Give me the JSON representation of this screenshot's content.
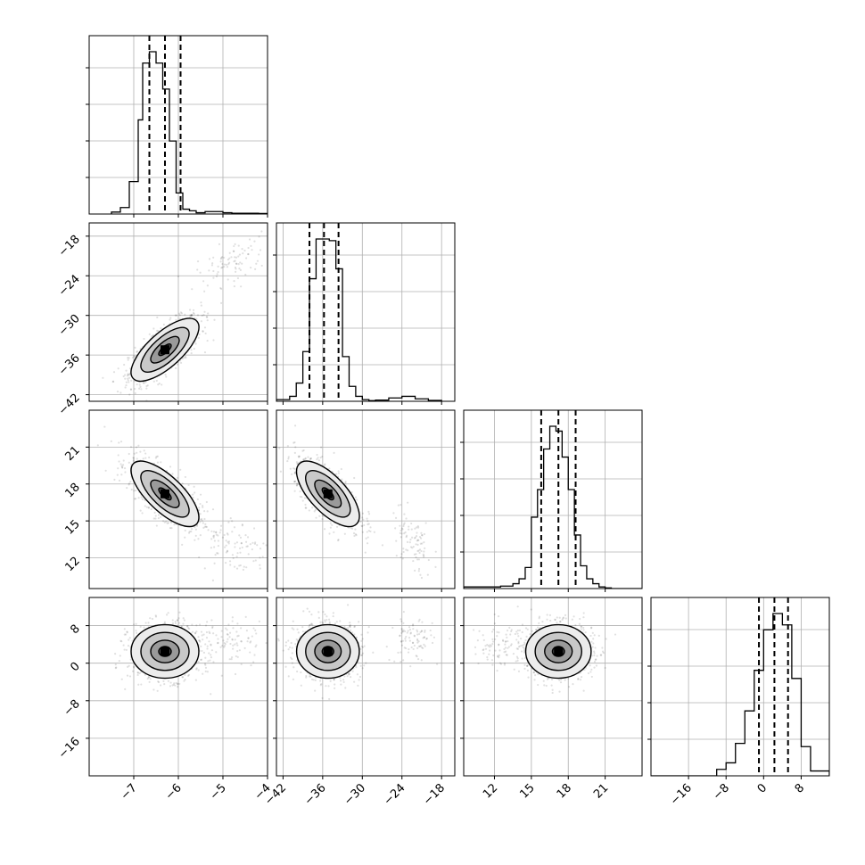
{
  "chart_data": {
    "type": "corner",
    "grid": true,
    "parameters": [
      {
        "ticks": [
          -7,
          -6,
          -5,
          -4
        ],
        "tick_labels": [
          "−7",
          "−6",
          "−5",
          "−4"
        ],
        "range": [
          -8.0,
          -4.0
        ],
        "hist": {
          "bins": [
            -7.5,
            -7.3,
            -7.1,
            -6.9,
            -6.8,
            -6.65,
            -6.5,
            -6.35,
            -6.2,
            -6.05,
            -5.9,
            -5.75,
            -5.6,
            -5.4,
            -5.2,
            -5.0,
            -4.8,
            -4.6,
            -4.4,
            -4.2,
            -4.0
          ],
          "counts": [
            0.012,
            0.04,
            0.2,
            0.58,
            0.93,
            1.0,
            0.93,
            0.77,
            0.45,
            0.13,
            0.03,
            0.02,
            0.008,
            0.015,
            0.015,
            0.008,
            0.005,
            0.005,
            0.005,
            0.003
          ]
        },
        "quantiles": [
          -6.65,
          -6.3,
          -5.95
        ]
      },
      {
        "ticks": [
          -42,
          -36,
          -30,
          -24,
          -18
        ],
        "tick_labels": [
          "−42",
          "−36",
          "−30",
          "−24",
          "−18"
        ],
        "range": [
          -43.0,
          -16.0
        ],
        "hist": {
          "bins": [
            -43.0,
            -41.0,
            -40.0,
            -39.0,
            -38.0,
            -37.0,
            -36.0,
            -35.0,
            -34.0,
            -33.0,
            -32.0,
            -31.0,
            -30.0,
            -29.0,
            -28.0,
            -26.0,
            -24.0,
            -22.0,
            -20.0,
            -18.0
          ],
          "counts": [
            0.01,
            0.03,
            0.11,
            0.3,
            0.74,
            0.98,
            0.98,
            0.97,
            0.8,
            0.27,
            0.09,
            0.03,
            0.01,
            0.004,
            0.007,
            0.02,
            0.03,
            0.015,
            0.005
          ]
        },
        "quantiles": [
          -38.0,
          -35.8,
          -33.6
        ]
      },
      {
        "ticks": [
          12,
          15,
          18,
          21
        ],
        "tick_labels": [
          "12",
          "15",
          "18",
          "21"
        ],
        "range": [
          9.5,
          24.0
        ],
        "hist": {
          "bins": [
            9.5,
            12.5,
            13.5,
            14.0,
            14.5,
            15.0,
            15.5,
            16.0,
            16.5,
            17.0,
            17.5,
            18.0,
            18.5,
            19.0,
            19.5,
            20.0,
            20.5,
            21.0,
            21.5,
            24.0
          ],
          "counts": [
            0.01,
            0.015,
            0.03,
            0.06,
            0.13,
            0.44,
            0.61,
            0.86,
            1.0,
            0.97,
            0.81,
            0.61,
            0.33,
            0.14,
            0.06,
            0.03,
            0.01,
            0.004,
            0.0
          ]
        },
        "quantiles": [
          15.8,
          17.2,
          18.6
        ]
      },
      {
        "ticks": [
          -16,
          -8,
          0,
          8
        ],
        "tick_labels": [
          "−16",
          "−8",
          "0",
          "8"
        ],
        "range": [
          -24.0,
          14.0
        ],
        "hist": {
          "bins": [
            -24.0,
            -10.0,
            -8.0,
            -6.0,
            -4.0,
            -2.0,
            0.0,
            2.0,
            4.0,
            6.0,
            8.0,
            10.0,
            14.0
          ],
          "counts": [
            0.0,
            0.04,
            0.08,
            0.2,
            0.4,
            0.65,
            0.9,
            1.0,
            0.93,
            0.6,
            0.18,
            0.03
          ]
        },
        "quantiles": [
          -1.0,
          2.3,
          5.2
        ]
      }
    ],
    "scatter_panels": [
      {
        "row": 1,
        "col": 0,
        "center": [
          -6.3,
          -35.2
        ],
        "sd": [
          0.4,
          2.5
        ],
        "corr": 0.72,
        "outlier_center": [
          -4.8,
          -22.0
        ],
        "outlier_sd": [
          0.4,
          1.8
        ],
        "outlier_corr": 0.5
      },
      {
        "row": 2,
        "col": 0,
        "center": [
          -6.3,
          17.2
        ],
        "sd": [
          0.4,
          1.4
        ],
        "corr": -0.72,
        "outlier_center": [
          -4.8,
          13.2
        ],
        "outlier_sd": [
          0.4,
          1.3
        ],
        "outlier_corr": -0.4
      },
      {
        "row": 2,
        "col": 1,
        "center": [
          -35.2,
          17.2
        ],
        "sd": [
          2.5,
          1.4
        ],
        "corr": -0.68,
        "outlier_center": [
          -22.5,
          13.2
        ],
        "outlier_sd": [
          1.6,
          1.3
        ],
        "outlier_corr": -0.4
      },
      {
        "row": 3,
        "col": 0,
        "center": [
          -6.3,
          2.5
        ],
        "sd": [
          0.4,
          3.0
        ],
        "corr": 0.0,
        "outlier_center": [
          -4.8,
          5.0
        ],
        "outlier_sd": [
          0.4,
          2.5
        ],
        "outlier_corr": 0.0
      },
      {
        "row": 3,
        "col": 1,
        "center": [
          -35.2,
          2.5
        ],
        "sd": [
          2.5,
          3.0
        ],
        "corr": 0.0,
        "outlier_center": [
          -22.5,
          5.0
        ],
        "outlier_sd": [
          1.6,
          2.5
        ],
        "outlier_corr": 0.0
      },
      {
        "row": 3,
        "col": 2,
        "center": [
          17.2,
          2.5
        ],
        "sd": [
          1.4,
          3.0
        ],
        "corr": 0.0,
        "outlier_center": [
          12.5,
          4.0
        ],
        "outlier_sd": [
          1.2,
          2.5
        ],
        "outlier_corr": 0.0
      }
    ]
  }
}
